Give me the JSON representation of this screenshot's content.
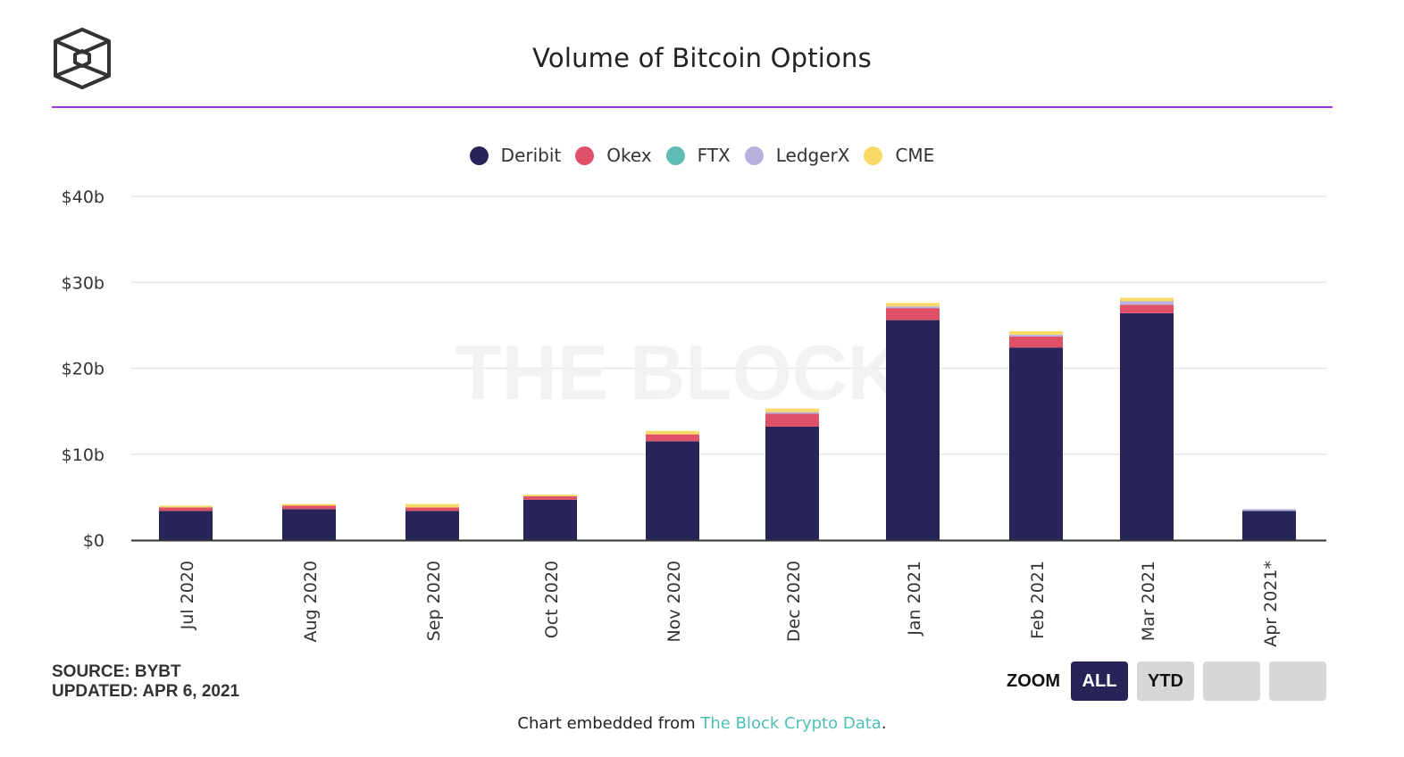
{
  "header": {
    "title": "Volume of Bitcoin Options",
    "logo": "the-block-cube-logo",
    "accent_color": "#9a33e0"
  },
  "watermark": "THE BLOCK",
  "chart_data": {
    "type": "bar",
    "stacked": true,
    "title": "Volume of Bitcoin Options",
    "xlabel": "",
    "ylabel": "",
    "ylim": [
      0,
      40
    ],
    "y_unit": "billion USD",
    "y_ticks": [
      0,
      10,
      20,
      30,
      40
    ],
    "y_tick_labels": [
      "$0",
      "$10b",
      "$20b",
      "$30b",
      "$40b"
    ],
    "grid": true,
    "legend_position": "top-center",
    "categories": [
      "Jul 2020",
      "Aug 2020",
      "Sep 2020",
      "Oct 2020",
      "Nov 2020",
      "Dec 2020",
      "Jan 2021",
      "Feb 2021",
      "Mar 2021",
      "Apr 2021*"
    ],
    "series": [
      {
        "name": "Deribit",
        "color": "#272458",
        "values": [
          3.4,
          3.6,
          3.4,
          4.7,
          11.5,
          13.2,
          25.6,
          22.4,
          26.4,
          3.4
        ]
      },
      {
        "name": "Okex",
        "color": "#df5168",
        "values": [
          0.4,
          0.4,
          0.4,
          0.4,
          0.8,
          1.5,
          1.4,
          1.3,
          1.0,
          0.0
        ]
      },
      {
        "name": "FTX",
        "color": "#5fbcb3",
        "values": [
          0,
          0,
          0,
          0,
          0,
          0,
          0,
          0,
          0,
          0
        ]
      },
      {
        "name": "LedgerX",
        "color": "#b6b1df",
        "values": [
          0,
          0,
          0,
          0,
          0,
          0.2,
          0.2,
          0.2,
          0.4,
          0.2
        ]
      },
      {
        "name": "CME",
        "color": "#f7d966",
        "values": [
          0.2,
          0.2,
          0.4,
          0.2,
          0.4,
          0.4,
          0.4,
          0.4,
          0.4,
          0.0
        ]
      }
    ]
  },
  "footer": {
    "source": "SOURCE: BYBT",
    "updated": "UPDATED: APR 6, 2021",
    "zoom_label": "ZOOM",
    "zoom_buttons": [
      "ALL",
      "YTD",
      "",
      ""
    ],
    "zoom_active": "ALL",
    "embed_prefix": "Chart embedded from ",
    "embed_link": "The Block Crypto Data",
    "embed_suffix": ".",
    "link_color": "#4fbfb6"
  }
}
